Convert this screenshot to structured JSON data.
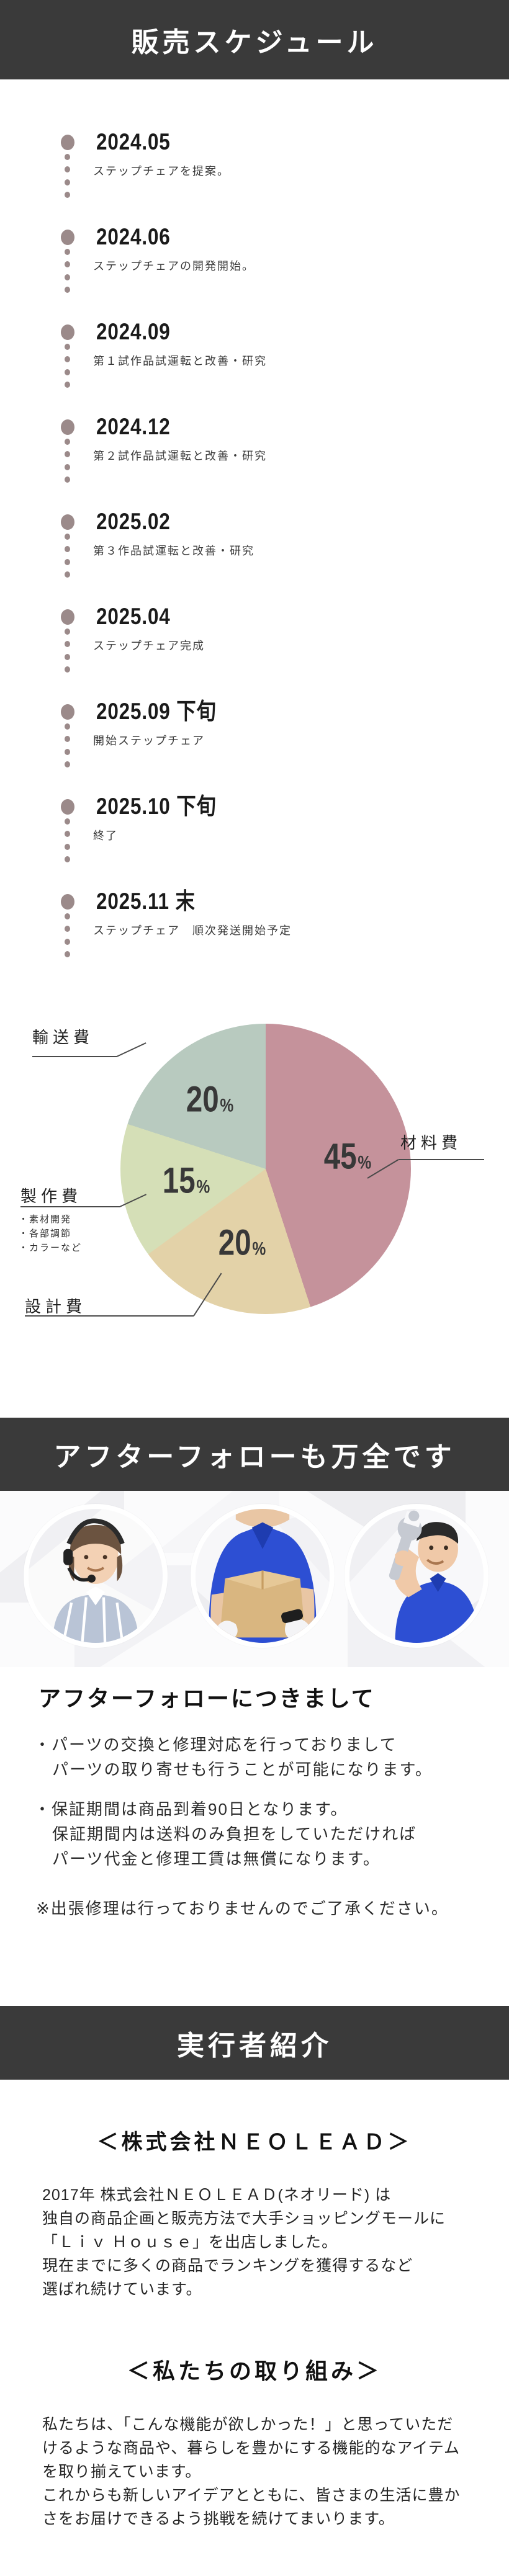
{
  "theme": {
    "bar_bg": "#3a3a3a",
    "bar_text": "#ffffff",
    "timeline_dot": "#9b8a8a",
    "page_bg": "#ffffff",
    "percent_text": "#383838"
  },
  "schedule": {
    "header": "販売スケジュール",
    "timeline": [
      {
        "date": "2024.05",
        "desc": "ステップチェアを提案。"
      },
      {
        "date": "2024.06",
        "desc": "ステップチェアの開発開始。"
      },
      {
        "date": "2024.09",
        "desc": "第１試作品試運転と改善・研究"
      },
      {
        "date": "2024.12",
        "desc": "第２試作品試運転と改善・研究"
      },
      {
        "date": "2025.02",
        "desc": "第３作品試運転と改善・研究"
      },
      {
        "date": "2025.04",
        "desc": "ステップチェア完成"
      },
      {
        "date": "2025.09 下旬",
        "desc": "開始ステップチェア"
      },
      {
        "date": "2025.10 下旬",
        "desc": "終了"
      },
      {
        "date": "2025.11  末",
        "desc": "ステップチェア　順次発送開始予定"
      }
    ]
  },
  "chart_data": {
    "type": "pie",
    "title": "",
    "start": "top",
    "direction": "clockwise",
    "slices": [
      {
        "label": "材料費",
        "value": 45,
        "color": "#c5929b",
        "notes": []
      },
      {
        "label": "設計費",
        "value": 20,
        "color": "#e3d2a8",
        "notes": []
      },
      {
        "label": "製作費",
        "value": 15,
        "color": "#d5dfb7",
        "notes": [
          "・素材開発",
          "・各部調節",
          "・カラーなど"
        ]
      },
      {
        "label": "輸送費",
        "value": 20,
        "color": "#b8cabf",
        "notes": []
      }
    ],
    "percent_suffix": "%"
  },
  "after_follow": {
    "header": "アフターフォローも万全です",
    "photos": [
      {
        "icon": "support-operator-photo"
      },
      {
        "icon": "delivery-box-photo"
      },
      {
        "icon": "repair-wrench-photo"
      }
    ],
    "heading": "アフターフォローにつきまして",
    "lines": [
      "・パーツの交換と修理対応を行っておりまして",
      "パーツの取り寄せも行うことが可能になります。",
      "・保証期間は商品到着90日となります。",
      "保証期間内は送料のみ負担をしていただければ",
      "パーツ代金と修理工賃は無償になります。",
      "※出張修理は行っておりませんのでご了承ください。"
    ]
  },
  "company": {
    "header": "実行者紹介",
    "company_heading": "＜株式会社ＮＥＯＬＥＡＤ＞",
    "intro_lines": [
      "2017年 株式会社ＮＥＯＬＥＡＤ(ネオリード) は",
      "独自の商品企画と販売方法で大手ショッピングモールに",
      "「Ｌｉｖ Ｈｏｕｓｅ」を出店しました。",
      "現在までに多くの商品でランキングを獲得するなど",
      "選ばれ続けています。"
    ],
    "team_heading": "＜私たちの取り組み＞",
    "team_lines": [
      "私たちは、「こんな機能が欲しかった！」と思っていただ",
      "けるような商品や、暮らしを豊かにする機能的なアイテム",
      "を取り揃えています。",
      "これからも新しいアイデアとともに、皆さまの生活に豊か",
      "さをお届けできるよう挑戦を続けてまいります。"
    ]
  }
}
